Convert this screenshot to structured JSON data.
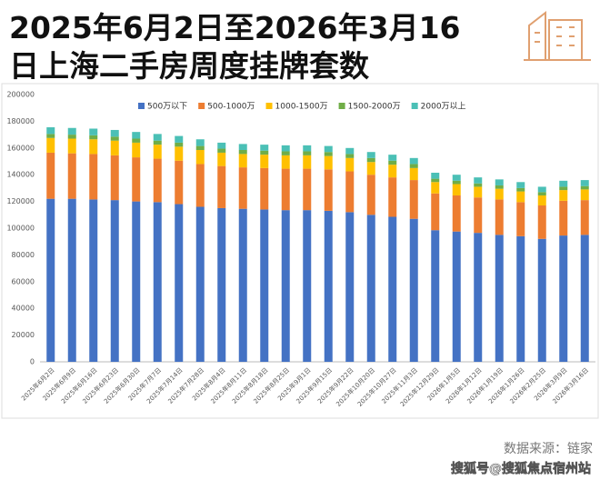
{
  "chart_data": {
    "type": "stacked_bar",
    "title": [
      "2025年6月2日至2026年3月16",
      "日上海二手房周度挂牌套数"
    ],
    "categories": [
      "2025年6月2日",
      "2025年6月9日",
      "2025年6月16日",
      "2025年6月23日",
      "2025年6月30日",
      "2025年7月7日",
      "2025年7月14日",
      "2025年7月28日",
      "2025年8月4日",
      "2025年8月11日",
      "2025年8月18日",
      "2025年8月25日",
      "2025年9月1日",
      "2025年9月15日",
      "2025年9月22日",
      "2025年10月20日",
      "2025年10月27日",
      "2025年11月3日",
      "2025年12月29日",
      "2026年1月5日",
      "2026年1月12日",
      "2026年1月19日",
      "2026年1月26日",
      "2026年2月25日",
      "2026年3月9日",
      "2026年3月16日"
    ],
    "series": [
      {
        "name": "500万以下",
        "color": "#4472c4",
        "values": [
          122000,
          122000,
          121500,
          121000,
          120000,
          119500,
          118000,
          116000,
          115000,
          114500,
          114000,
          113500,
          113500,
          113000,
          112000,
          110000,
          108500,
          107000,
          98500,
          97500,
          96500,
          95000,
          94000,
          92000,
          94500,
          95000
        ]
      },
      {
        "name": "500-1000万",
        "color": "#ed7d31",
        "values": [
          34500,
          34000,
          34000,
          33500,
          33000,
          32500,
          32500,
          32000,
          31500,
          31000,
          31000,
          31000,
          31000,
          31000,
          30500,
          30000,
          29500,
          29000,
          27500,
          27000,
          26500,
          26500,
          25500,
          25000,
          26000,
          26000
        ]
      },
      {
        "name": "1000-1500万",
        "color": "#ffc000",
        "values": [
          11000,
          11000,
          11000,
          11000,
          11000,
          10500,
          10500,
          10500,
          10000,
          10000,
          10000,
          10000,
          10000,
          10000,
          10000,
          9500,
          9500,
          9000,
          8500,
          8500,
          8000,
          8000,
          8000,
          7500,
          8000,
          8000
        ]
      },
      {
        "name": "1500-2000万",
        "color": "#70ad47",
        "values": [
          3000,
          3000,
          3000,
          3000,
          3000,
          3000,
          3000,
          3000,
          3000,
          3000,
          3000,
          3000,
          3000,
          3000,
          3000,
          3000,
          3000,
          3000,
          2500,
          2500,
          2500,
          2500,
          2500,
          2500,
          2500,
          2500
        ]
      },
      {
        "name": "2000万以上",
        "color": "#4bc0b6",
        "values": [
          5000,
          5000,
          5000,
          5000,
          5000,
          5000,
          5000,
          5000,
          4500,
          4500,
          4500,
          4500,
          4500,
          4500,
          4500,
          4500,
          4500,
          4500,
          4500,
          4500,
          4500,
          4500,
          4500,
          4000,
          4500,
          4500
        ]
      }
    ],
    "ylim": [
      0,
      200000
    ],
    "yticks": [
      0,
      20000,
      40000,
      60000,
      80000,
      100000,
      120000,
      140000,
      160000,
      180000,
      200000
    ],
    "grid": false,
    "legend": "top"
  },
  "footer": {
    "source": "数据来源：链家",
    "credit": "搜狐号@搜狐焦点宿州站"
  }
}
